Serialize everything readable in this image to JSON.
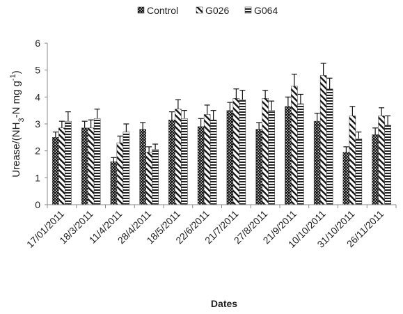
{
  "chart_data": {
    "type": "bar",
    "categories": [
      "17/01/2011",
      "18/3/2011",
      "11/4/2011",
      "28/4/2011",
      "18/5/2011",
      "22/6/2011",
      "21/7/2011",
      "27/8/2011",
      "21/9/2011",
      "10/10/2011",
      "31/10/2011",
      "26/11/2011"
    ],
    "series": [
      {
        "name": "Control",
        "pattern": "dots",
        "values": [
          2.5,
          2.85,
          1.6,
          2.8,
          3.15,
          2.9,
          3.5,
          2.8,
          3.65,
          3.1,
          1.95,
          2.6
        ],
        "errors": [
          0.2,
          0.25,
          0.15,
          0.25,
          0.3,
          0.3,
          0.3,
          0.25,
          0.35,
          0.3,
          0.2,
          0.25
        ]
      },
      {
        "name": "G026",
        "pattern": "diagonal",
        "values": [
          2.85,
          2.85,
          2.3,
          1.95,
          3.55,
          3.35,
          3.95,
          3.95,
          4.4,
          4.8,
          3.3,
          3.3
        ],
        "errors": [
          0.25,
          0.3,
          0.25,
          0.2,
          0.35,
          0.35,
          0.35,
          0.3,
          0.45,
          0.45,
          0.35,
          0.3
        ]
      },
      {
        "name": "G064",
        "pattern": "horizontal",
        "values": [
          3.1,
          3.2,
          2.7,
          2.05,
          3.2,
          3.15,
          3.9,
          3.5,
          3.75,
          4.3,
          2.45,
          2.95
        ],
        "errors": [
          0.35,
          0.35,
          0.3,
          0.2,
          0.3,
          0.35,
          0.35,
          0.35,
          0.35,
          0.4,
          0.25,
          0.35
        ]
      }
    ],
    "ylabel_parts": [
      "Urease/(NH",
      "3",
      "-N mg g",
      "-1",
      ")"
    ],
    "xlabel": "Dates",
    "ylim": [
      0,
      6
    ],
    "yticks": [
      "0",
      "1",
      "2",
      "3",
      "4",
      "5",
      "6"
    ],
    "legend_position": "top-center",
    "grid": false
  }
}
